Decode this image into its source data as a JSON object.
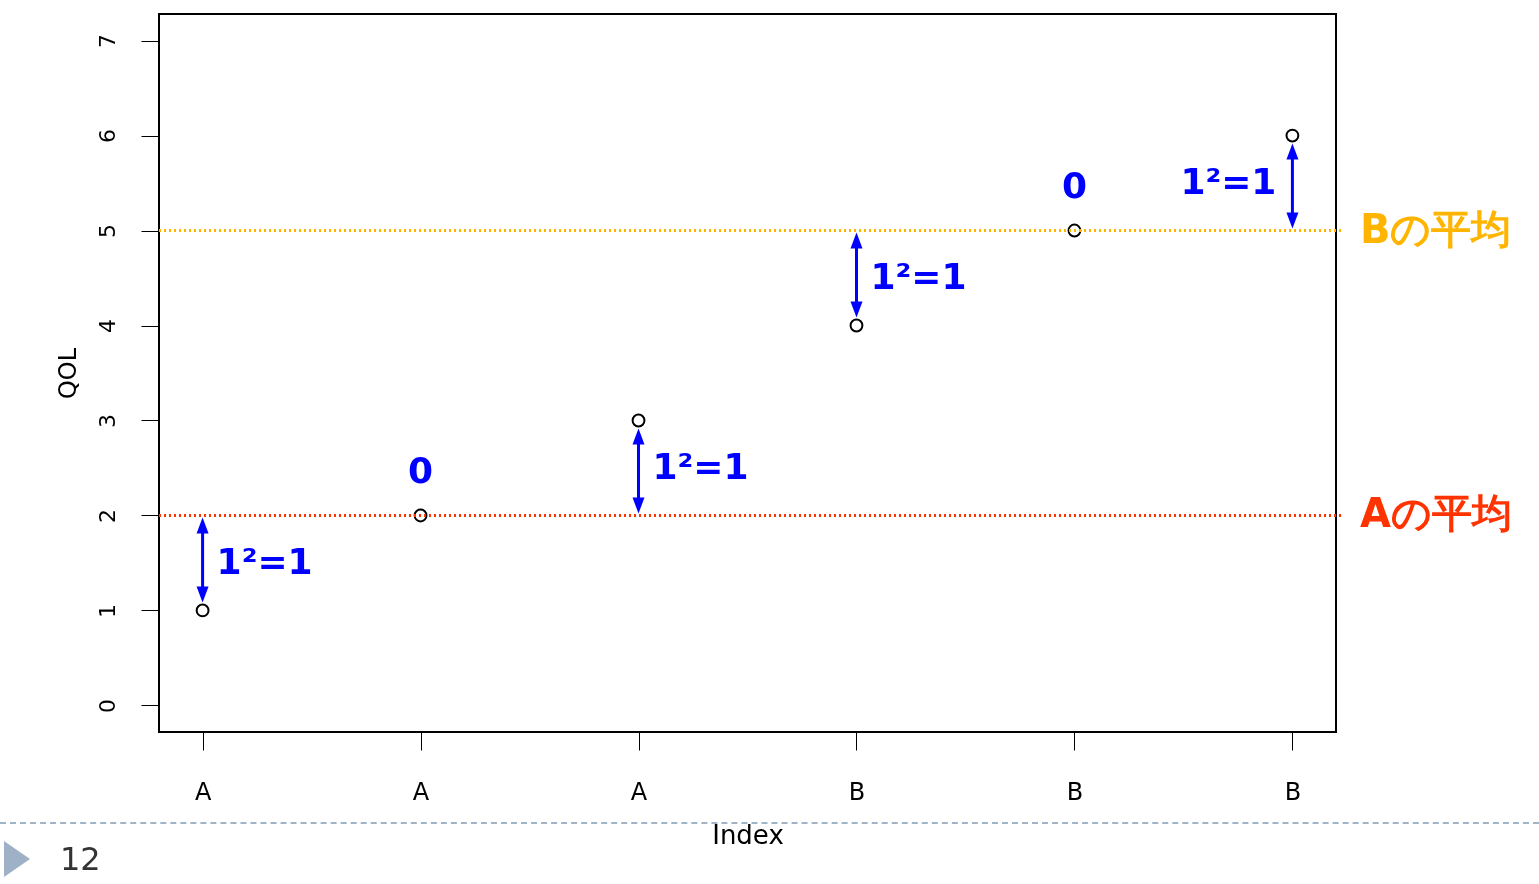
{
  "chart_data": {
    "type": "scatter",
    "xlabel": "Index",
    "ylabel": "QOL",
    "categories": [
      "A",
      "A",
      "A",
      "B",
      "B",
      "B"
    ],
    "series": [
      {
        "color": "#000000",
        "values": [
          1,
          2,
          3,
          4,
          5,
          6
        ]
      }
    ],
    "ylim": [
      -0.28,
      7.28
    ],
    "yticks": [
      0,
      1,
      2,
      3,
      4,
      5,
      6,
      7
    ],
    "marker": "circle",
    "grid": false,
    "ref_lines": [
      {
        "axis": "y",
        "value": 2,
        "label": "Aの平均",
        "color": "#ff3300",
        "line_style": "dotted"
      },
      {
        "axis": "y",
        "value": 5,
        "label": "Bの平均",
        "color": "#ffb400",
        "line_style": "dotted"
      }
    ],
    "annotations": [
      "1²=1",
      "0",
      "1²=1",
      "1²=1",
      "0",
      "1²=1",
      "12"
    ]
  }
}
